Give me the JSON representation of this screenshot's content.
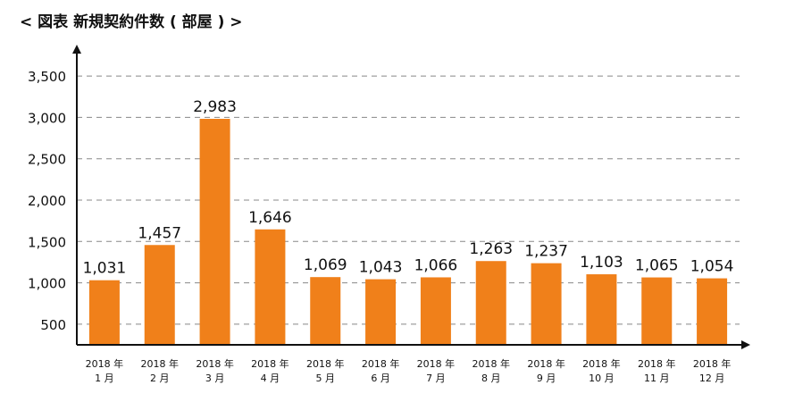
{
  "chart_data": {
    "type": "bar",
    "title": "< 図表 新規契約件数 ( 部屋 ) >",
    "categories": [
      [
        "2018 年",
        "1 月"
      ],
      [
        "2018 年",
        "2 月"
      ],
      [
        "2018 年",
        "3 月"
      ],
      [
        "2018 年",
        "4 月"
      ],
      [
        "2018 年",
        "5 月"
      ],
      [
        "2018 年",
        "6 月"
      ],
      [
        "2018 年",
        "7 月"
      ],
      [
        "2018 年",
        "8 月"
      ],
      [
        "2018 年",
        "9 月"
      ],
      [
        "2018 年",
        "10 月"
      ],
      [
        "2018 年",
        "11 月"
      ],
      [
        "2018 年",
        "12 月"
      ]
    ],
    "values": [
      1031,
      1457,
      2983,
      1646,
      1069,
      1043,
      1066,
      1263,
      1237,
      1103,
      1065,
      1054
    ],
    "value_labels": [
      "1,031",
      "1,457",
      "2,983",
      "1,646",
      "1,069",
      "1,043",
      "1,066",
      "1,263",
      "1,237",
      "1,103",
      "1,065",
      "1,054"
    ],
    "yticks": [
      500,
      1000,
      1500,
      2000,
      2500,
      3000,
      3500
    ],
    "ytick_labels": [
      "500",
      "1,000",
      "1,500",
      "2,000",
      "2,500",
      "3,000",
      "3,500"
    ],
    "ylim": [
      250,
      3750
    ],
    "grid": true,
    "bar_color": "#f0801a",
    "grid_color": "#888888",
    "axis_color": "#111111"
  }
}
